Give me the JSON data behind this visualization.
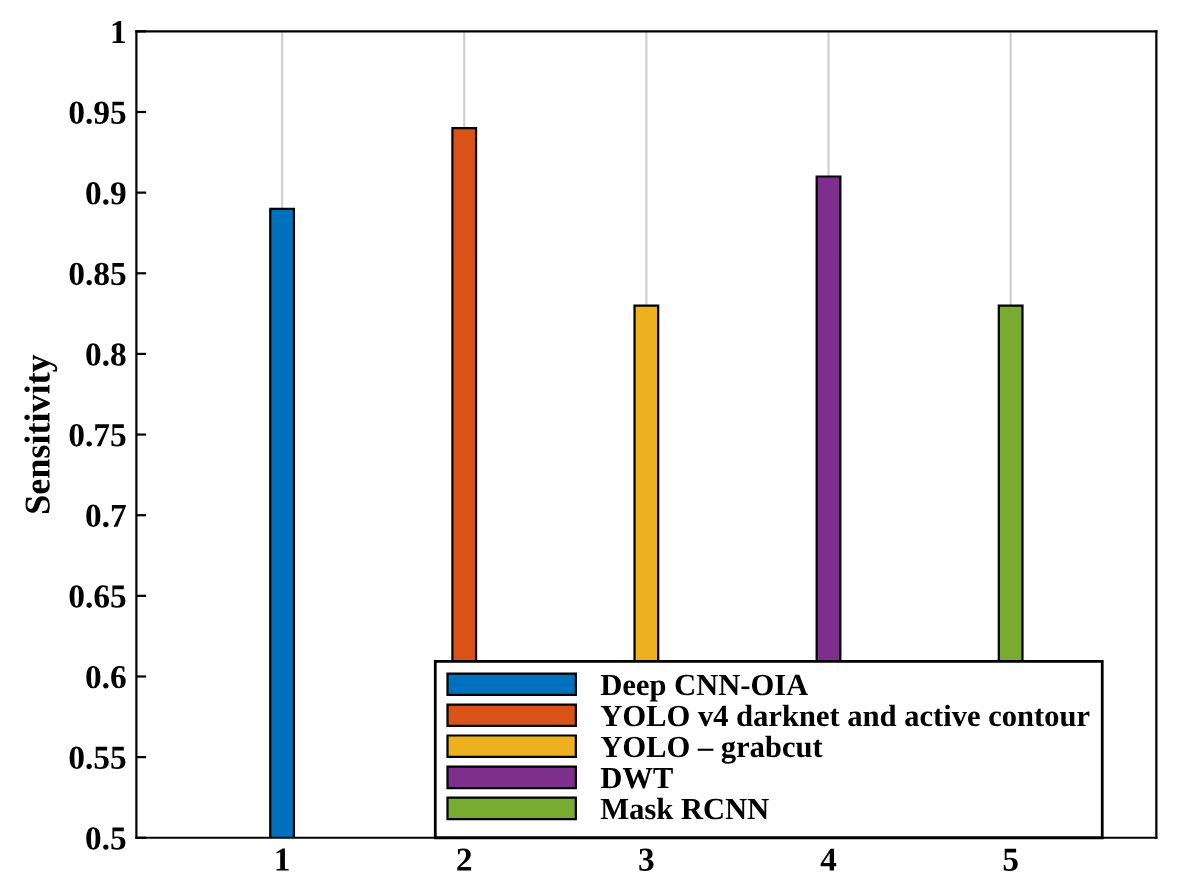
{
  "chart_data": {
    "type": "bar",
    "ylabel": "Sensitivity",
    "categories": [
      "1",
      "2",
      "3",
      "4",
      "5"
    ],
    "series": [
      {
        "name": "Deep CNN-OIA",
        "color": "#0072bd",
        "values": [
          0.89,
          null,
          null,
          null,
          null
        ]
      },
      {
        "name": "YOLO v4 darknet and active contour",
        "color": "#d95319",
        "values": [
          null,
          0.94,
          null,
          null,
          null
        ]
      },
      {
        "name": "YOLO – grabcut",
        "color": "#edb120",
        "values": [
          null,
          null,
          0.83,
          null,
          null
        ]
      },
      {
        "name": "DWT",
        "color": "#7e2f8e",
        "values": [
          null,
          null,
          null,
          0.91,
          null
        ]
      },
      {
        "name": "Mask RCNN",
        "color": "#77ac30",
        "values": [
          null,
          null,
          null,
          null,
          0.83
        ]
      }
    ],
    "ylim": [
      0.5,
      1
    ],
    "yticks": [
      0.5,
      0.55,
      0.6,
      0.65,
      0.7,
      0.75,
      0.8,
      0.85,
      0.9,
      0.95,
      1
    ],
    "grid": "x",
    "legend": "bottom"
  }
}
